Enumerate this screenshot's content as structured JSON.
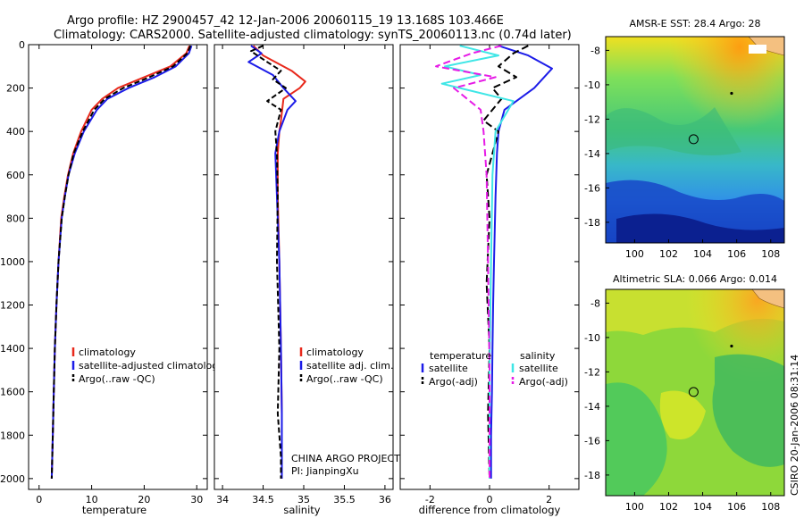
{
  "title": {
    "line1": "Argo profile: HZ 2900457_42 12-Jan-2006 20060115_19 13.168S 103.466E",
    "line2": "Climatology: CARS2000. Satellite-adjusted climatology: synTS_20060113.nc (0.74d later)"
  },
  "colors": {
    "red": "#e8291c",
    "blue": "#1c1ce8",
    "black": "#000000",
    "cyan": "#3fe6e6",
    "magenta": "#e61ce6"
  },
  "stamp": "CSIRO 20-Jan-2006 08:31:14",
  "credit": {
    "line1": "CHINA ARGO PROJECT",
    "line2": "PI: JianpingXu"
  },
  "chart_data": [
    {
      "type": "line",
      "panel": "temperature",
      "xlabel": "temperature",
      "ylabel": "",
      "xlim": [
        -2,
        32
      ],
      "ylim": [
        0,
        2050
      ],
      "y_reversed": true,
      "xticks": [
        0,
        10,
        20,
        30
      ],
      "xtick_labels": [
        "0",
        "10",
        "20",
        "30"
      ],
      "yticks": [
        0,
        200,
        400,
        600,
        800,
        1000,
        1200,
        1400,
        1600,
        1800,
        2000
      ],
      "ytick_labels": [
        "0",
        "200",
        "400",
        "600",
        "800",
        "1000",
        "1200",
        "1400",
        "1600",
        "1800",
        "2000"
      ],
      "legend": [
        "climatology",
        "satellite-adjusted climatology",
        "Argo(..raw -QC)"
      ],
      "series": [
        {
          "name": "climatology",
          "color": "red",
          "dash": "",
          "x": [
            28.6,
            28,
            25,
            20,
            15,
            12,
            10,
            8,
            6.5,
            5.5,
            4.8,
            4.2,
            3.7,
            3.3,
            3,
            2.8,
            2.6,
            2.5,
            2.4
          ],
          "y": [
            5,
            40,
            100,
            150,
            200,
            250,
            300,
            400,
            500,
            600,
            700,
            800,
            1000,
            1200,
            1400,
            1600,
            1800,
            1900,
            2000
          ]
        },
        {
          "name": "satellite-adjusted climatology",
          "color": "blue",
          "dash": "",
          "x": [
            29,
            28.5,
            26,
            22,
            17,
            13,
            11,
            8.5,
            6.8,
            5.6,
            4.9,
            4.3,
            3.7,
            3.3,
            3,
            2.8,
            2.6,
            2.5,
            2.4
          ],
          "y": [
            5,
            40,
            100,
            150,
            200,
            250,
            300,
            400,
            500,
            600,
            700,
            800,
            1000,
            1200,
            1400,
            1600,
            1800,
            1900,
            2000
          ]
        },
        {
          "name": "Argo(..raw -QC)",
          "color": "black",
          "dash": "6,3",
          "x": [
            28.8,
            28.2,
            25.5,
            21,
            16,
            12.5,
            10.5,
            8.3,
            6.6,
            5.6,
            4.9,
            4.3,
            3.7,
            3.3,
            3,
            2.8,
            2.6,
            2.5,
            2.4
          ],
          "y": [
            5,
            40,
            100,
            150,
            200,
            250,
            300,
            400,
            500,
            600,
            700,
            800,
            1000,
            1200,
            1400,
            1600,
            1800,
            1900,
            2000
          ]
        }
      ]
    },
    {
      "type": "line",
      "panel": "salinity",
      "xlabel": "salinity",
      "xlim": [
        33.9,
        36.1
      ],
      "ylim": [
        0,
        2050
      ],
      "y_reversed": true,
      "xticks": [
        34,
        34.5,
        35,
        35.5,
        36
      ],
      "xtick_labels": [
        "34",
        "34.5",
        "35",
        "35.5",
        "36"
      ],
      "legend": [
        "climatology",
        "satellite adj. clim.",
        "Argo(..raw -QC)"
      ],
      "series": [
        {
          "name": "climatology",
          "color": "red",
          "dash": "",
          "x": [
            34.38,
            34.5,
            34.85,
            35.02,
            34.95,
            34.75,
            34.72,
            34.7,
            34.68,
            34.68,
            34.7,
            34.72,
            34.73,
            34.73,
            34.73
          ],
          "y": [
            5,
            50,
            120,
            170,
            200,
            250,
            350,
            400,
            500,
            700,
            1000,
            1400,
            1700,
            1900,
            2000
          ]
        },
        {
          "name": "satellite adj. clim.",
          "color": "blue",
          "dash": "",
          "x": [
            34.35,
            34.48,
            34.32,
            34.62,
            34.75,
            34.9,
            34.8,
            34.7,
            34.65,
            34.67,
            34.7,
            34.72,
            34.73,
            34.73,
            34.73
          ],
          "y": [
            5,
            40,
            80,
            140,
            200,
            260,
            300,
            400,
            500,
            700,
            1000,
            1400,
            1700,
            1900,
            2000
          ]
        },
        {
          "name": "Argo(..raw -QC)",
          "color": "black",
          "dash": "6,3",
          "x": [
            34.5,
            34.35,
            34.55,
            34.72,
            34.62,
            34.78,
            34.55,
            34.72,
            34.65,
            34.67,
            34.68,
            34.67,
            34.7,
            34.68,
            34.72,
            34.72
          ],
          "y": [
            5,
            30,
            80,
            120,
            160,
            200,
            260,
            300,
            400,
            500,
            700,
            1000,
            1400,
            1700,
            1900,
            2000
          ]
        }
      ]
    },
    {
      "type": "line",
      "panel": "difference",
      "xlabel": "difference from climatology",
      "xlim": [
        -3,
        3
      ],
      "ylim": [
        0,
        2050
      ],
      "y_reversed": true,
      "xticks": [
        -2,
        0,
        2
      ],
      "xtick_labels": [
        "-2",
        "0",
        "2"
      ],
      "legend_groups": [
        "temperature",
        "salinity"
      ],
      "legend": [
        "satellite",
        "Argo(-adj)",
        "satellite",
        "Argo(-adj)"
      ],
      "series": [
        {
          "name": "temperature satellite",
          "color": "blue",
          "dash": "",
          "x": [
            0.3,
            1.3,
            2.1,
            1.5,
            0.5,
            0.3,
            0.25,
            0.2,
            0.15,
            0.12,
            0.1,
            0.08,
            0.05,
            0.05
          ],
          "y": [
            5,
            50,
            110,
            200,
            300,
            400,
            500,
            700,
            1000,
            1200,
            1400,
            1600,
            1800,
            2000
          ]
        },
        {
          "name": "temperature Argo(-adj)",
          "color": "black",
          "dash": "8,4",
          "x": [
            1.3,
            0.8,
            0.3,
            0.9,
            0.1,
            0.4,
            -0.2,
            0.3,
            -0.1,
            0,
            -0.1,
            0,
            -0.05,
            0
          ],
          "y": [
            5,
            40,
            100,
            150,
            200,
            250,
            350,
            400,
            600,
            800,
            1100,
            1400,
            1700,
            2000
          ]
        },
        {
          "name": "salinity satellite",
          "color": "cyan",
          "dash": "",
          "x": [
            -1,
            0.3,
            -1.5,
            -0.3,
            -1.6,
            0.8,
            0.2,
            0.1,
            0.05,
            0,
            0
          ],
          "y": [
            5,
            50,
            100,
            140,
            180,
            260,
            400,
            600,
            1000,
            1500,
            2000
          ]
        },
        {
          "name": "salinity Argo(-adj)",
          "color": "magenta",
          "dash": "8,4",
          "x": [
            0.4,
            -0.6,
            -1.8,
            0.2,
            -1.2,
            -0.3,
            -0.2,
            -0.1,
            -0.05,
            0,
            0
          ],
          "y": [
            5,
            40,
            100,
            150,
            200,
            300,
            400,
            600,
            1000,
            1500,
            2000
          ]
        }
      ]
    },
    {
      "type": "heatmap",
      "panel": "AMSR-E SST",
      "title": "AMSR-E SST: 28.4  Argo: 28",
      "xlim": [
        98.3,
        108.8
      ],
      "ylim": [
        -19.2,
        -7.2
      ],
      "xticks": [
        100,
        102,
        104,
        106,
        108
      ],
      "xtick_labels": [
        "100",
        "102",
        "104",
        "106",
        "108"
      ],
      "yticks": [
        -8,
        -10,
        -12,
        -14,
        -16,
        -18
      ],
      "ytick_labels": [
        "-8",
        "-10",
        "-12",
        "-14",
        "-16",
        "-18"
      ],
      "marker": {
        "lon": 103.466,
        "lat": -13.168
      },
      "dot": {
        "lon": 105.7,
        "lat": -10.5
      }
    },
    {
      "type": "heatmap",
      "panel": "Altimetric SLA",
      "title": "Altimetric SLA: 0.066  Argo: 0.014",
      "xlim": [
        98.3,
        108.8
      ],
      "ylim": [
        -19.2,
        -7.2
      ],
      "xticks": [
        100,
        102,
        104,
        106,
        108
      ],
      "xtick_labels": [
        "100",
        "102",
        "104",
        "106",
        "108"
      ],
      "yticks": [
        -8,
        -10,
        -12,
        -14,
        -16,
        -18
      ],
      "ytick_labels": [
        "-8",
        "-10",
        "-12",
        "-14",
        "-16",
        "-18"
      ],
      "marker": {
        "lon": 103.466,
        "lat": -13.168
      },
      "dot": {
        "lon": 105.7,
        "lat": -10.5
      }
    }
  ]
}
